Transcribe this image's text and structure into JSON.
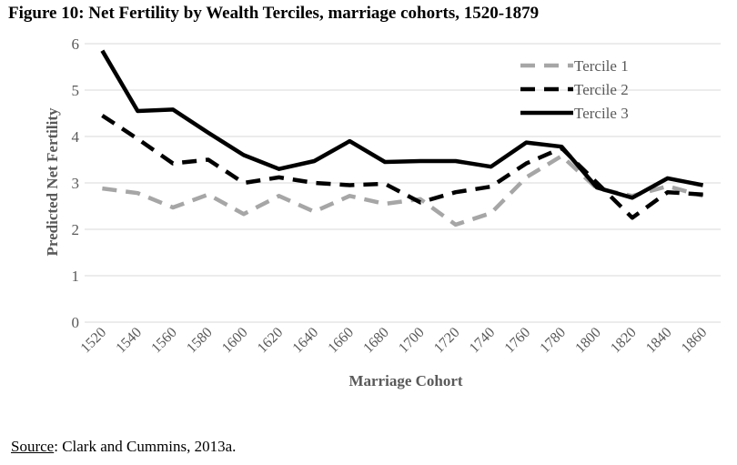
{
  "figure": {
    "title": "Figure 10:  Net Fertility by Wealth Terciles, marriage cohorts, 1520-1879",
    "source_label": "Source",
    "source_text": ": Clark and Cummins, 2013a."
  },
  "chart_data": {
    "type": "line",
    "categories": [
      "1520",
      "1540",
      "1560",
      "1580",
      "1600",
      "1620",
      "1640",
      "1660",
      "1680",
      "1700",
      "1720",
      "1740",
      "1760",
      "1780",
      "1800",
      "1820",
      "1840",
      "1860"
    ],
    "xlabel": "Marriage Cohort",
    "ylabel": "Predicted Net Fertility",
    "ylim": [
      0,
      6
    ],
    "yticks": [
      0,
      1,
      2,
      3,
      4,
      5,
      6
    ],
    "grid": true,
    "legend_position": "top-right",
    "series": [
      {
        "name": "Tercile 1",
        "color": "#a6a6a6",
        "style": "dashed",
        "values": [
          2.88,
          2.78,
          2.47,
          2.75,
          2.33,
          2.72,
          2.38,
          2.72,
          2.55,
          2.65,
          2.1,
          2.35,
          3.12,
          3.58,
          2.88,
          2.72,
          2.93,
          2.72
        ]
      },
      {
        "name": "Tercile 2",
        "color": "#000000",
        "style": "dashed",
        "values": [
          4.45,
          3.95,
          3.42,
          3.5,
          3.0,
          3.12,
          3.0,
          2.95,
          2.98,
          2.58,
          2.8,
          2.92,
          3.42,
          3.75,
          3.0,
          2.25,
          2.8,
          2.75
        ]
      },
      {
        "name": "Tercile 3",
        "color": "#000000",
        "style": "solid",
        "values": [
          5.85,
          4.55,
          4.58,
          4.08,
          3.6,
          3.3,
          3.47,
          3.9,
          3.45,
          3.47,
          3.47,
          3.35,
          3.87,
          3.78,
          2.9,
          2.68,
          3.1,
          2.95
        ]
      }
    ]
  }
}
